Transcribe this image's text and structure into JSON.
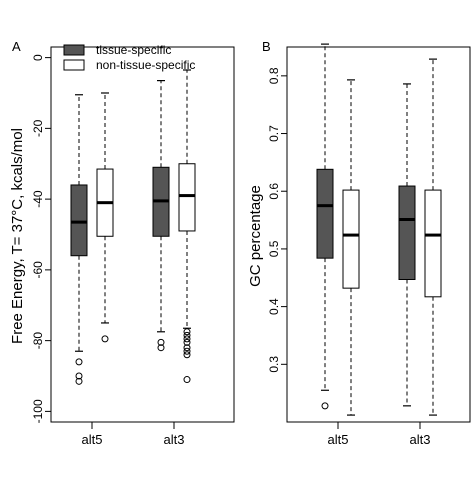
{
  "chart_data": [
    {
      "type": "boxplot",
      "panel_label": "A",
      "ylabel": "Free Energy, T= 37°C, kcals/mol",
      "ylim": [
        -103,
        3
      ],
      "yticks": [
        0,
        -20,
        -40,
        -60,
        -80,
        -100
      ],
      "categories": [
        "alt5",
        "alt3"
      ],
      "legend": {
        "placement": "top-left",
        "entries": [
          {
            "label": "tissue-specific",
            "color": "#555555"
          },
          {
            "label": "non-tissue-specific",
            "color": "#ffffff"
          }
        ]
      },
      "series": [
        {
          "name": "tissue-specific",
          "color": "#555555",
          "boxes": [
            {
              "whisker_low": -83,
              "q1": -56,
              "median": -46.5,
              "q3": -36,
              "whisker_high": -10.5,
              "outliers": [
                -86,
                -90,
                -91.5
              ]
            },
            {
              "whisker_low": -77.5,
              "q1": -50.5,
              "median": -40.5,
              "q3": -31,
              "whisker_high": -6.5,
              "outliers": [
                -80.5,
                -82
              ]
            }
          ]
        },
        {
          "name": "non-tissue-specific",
          "color": "#ffffff",
          "boxes": [
            {
              "whisker_low": -75,
              "q1": -50.5,
              "median": -41,
              "q3": -31.5,
              "whisker_high": -10,
              "outliers": [
                -79.5
              ]
            },
            {
              "whisker_low": -76.5,
              "q1": -49,
              "median": -39,
              "q3": -30,
              "whisker_high": -3.5,
              "outliers": [
                -77.5,
                -78.5,
                -79.5,
                -80.5,
                -82,
                -83,
                -84,
                -91
              ]
            }
          ]
        }
      ]
    },
    {
      "type": "boxplot",
      "panel_label": "B",
      "ylabel": "GC percentage",
      "ylim": [
        0.2,
        0.85
      ],
      "yticks": [
        0.3,
        0.4,
        0.5,
        0.6,
        0.7,
        0.8
      ],
      "categories": [
        "alt5",
        "alt3"
      ],
      "series": [
        {
          "name": "tissue-specific",
          "color": "#555555",
          "boxes": [
            {
              "whisker_low": 0.255,
              "q1": 0.484,
              "median": 0.575,
              "q3": 0.638,
              "whisker_high": 0.855,
              "outliers": [
                0.228
              ]
            },
            {
              "whisker_low": 0.228,
              "q1": 0.447,
              "median": 0.551,
              "q3": 0.609,
              "whisker_high": 0.786,
              "outliers": []
            }
          ]
        },
        {
          "name": "non-tissue-specific",
          "color": "#ffffff",
          "boxes": [
            {
              "whisker_low": 0.212,
              "q1": 0.432,
              "median": 0.524,
              "q3": 0.602,
              "whisker_high": 0.793,
              "outliers": []
            },
            {
              "whisker_low": 0.212,
              "q1": 0.417,
              "median": 0.524,
              "q3": 0.602,
              "whisker_high": 0.829,
              "outliers": []
            }
          ]
        }
      ]
    }
  ]
}
